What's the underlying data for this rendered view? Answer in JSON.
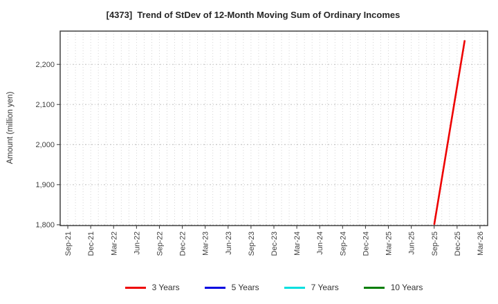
{
  "chart_data": {
    "type": "line",
    "title": "[4373]  Trend of StDev of 12-Month Moving Sum of Ordinary Incomes",
    "ylabel": "Amount (million yen)",
    "xlabel": "",
    "y_ticks": [
      1800,
      1900,
      2000,
      2100,
      2200
    ],
    "y_tick_labels": [
      "1,800",
      "1,900",
      "2,000",
      "2,100",
      "2,200"
    ],
    "ylim": [
      1798,
      2283
    ],
    "x_ticks": [
      "Sep-21",
      "Dec-21",
      "Mar-22",
      "Jun-22",
      "Sep-22",
      "Dec-22",
      "Mar-23",
      "Jun-23",
      "Sep-23",
      "Dec-23",
      "Mar-24",
      "Jun-24",
      "Sep-24",
      "Dec-24",
      "Mar-25",
      "Jun-25",
      "Sep-25",
      "Dec-25",
      "Mar-26"
    ],
    "x_start_month": "Aug-21",
    "x_end_month": "Apr-26",
    "grid": "dotted; vertical gridline every month, horizontal every 100 million yen",
    "legend_position": "bottom",
    "series": [
      {
        "name": "3 Years",
        "color": "#ee0000",
        "points": [
          {
            "x": "Sep-25",
            "y": 1800
          },
          {
            "x": "Jan-26",
            "y": 2260
          }
        ]
      },
      {
        "name": "5 Years",
        "color": "#0000e0",
        "points": []
      },
      {
        "name": "7 Years",
        "color": "#00dfdf",
        "points": []
      },
      {
        "name": "10 Years",
        "color": "#007d00",
        "points": []
      }
    ]
  }
}
